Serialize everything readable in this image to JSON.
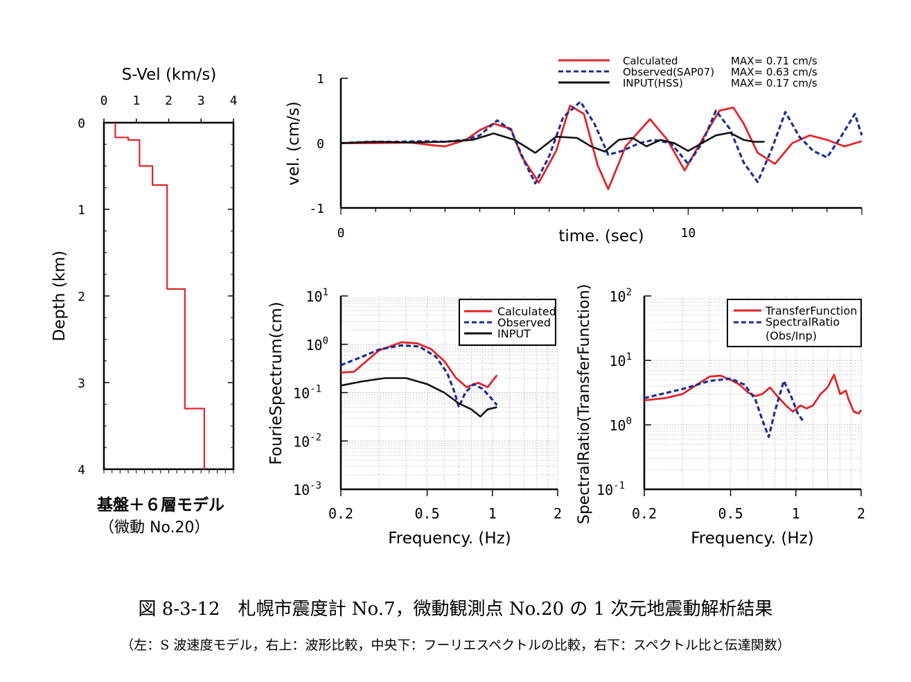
{
  "caption": {
    "main": "図 8-3-12　札幌市震度計 No.7，微動観測点 No.20 の 1 次元地震動解析結果",
    "sub": "（左：S 波速度モデル，右上：波形比較，中央下：フーリエスペクトルの比較，右下：スペクトル比と伝達関数）"
  },
  "colors": {
    "calculated": "#e0242a",
    "observed": "#1a2f8f",
    "input": "#111111"
  },
  "chart_data": [
    {
      "type": "line",
      "id": "velocity-model",
      "title": "S-Vel (km/s)",
      "xlabel": "S-Vel (km/s)",
      "ylabel": "Depth (km)",
      "xlim": [
        0,
        4
      ],
      "ylim": [
        0,
        4
      ],
      "x_ticks": [
        "0",
        "1",
        "2",
        "3",
        "4"
      ],
      "y_ticks": [
        "0",
        "1",
        "2",
        "3",
        "4"
      ],
      "y_inverted": true,
      "step_profile": {
        "depths": [
          0,
          0.17,
          0.2,
          0.5,
          0.72,
          1.92,
          3.3,
          4.0
        ],
        "velocities": [
          0.35,
          0.75,
          1.1,
          1.5,
          1.95,
          2.5,
          3.1
        ]
      },
      "annotation": [
        "基盤＋６層モデル",
        "（微動 No.20）"
      ]
    },
    {
      "type": "line",
      "id": "waveform",
      "xlabel": "time. (sec)",
      "ylabel": "vel. (cm/s)",
      "xlim": [
        0,
        15
      ],
      "ylim": [
        -1,
        1
      ],
      "x_ticks": [
        "0",
        "10"
      ],
      "y_ticks": [
        "-1",
        "0",
        "1"
      ],
      "legend": [
        {
          "name": "Calculated",
          "max": "MAX= 0.71 cm/s"
        },
        {
          "name": "Observed(SAP07)",
          "max": "MAX= 0.63 cm/s"
        },
        {
          "name": "INPUT(HSS)",
          "max": "MAX= 0.17 cm/s"
        }
      ],
      "series": [
        {
          "name": "Calculated",
          "x": [
            0,
            1,
            2,
            2.6,
            3,
            3.6,
            4,
            4.4,
            4.9,
            5.2,
            5.7,
            6.2,
            6.6,
            7.0,
            7.4,
            7.7,
            8.2,
            8.9,
            9.4,
            9.9,
            10.4,
            10.9,
            11.3,
            11.6,
            12.0,
            12.5,
            13.0,
            13.5,
            14.0,
            14.5,
            15.0
          ],
          "y": [
            0,
            0,
            0.01,
            -0.03,
            -0.05,
            0.05,
            0.2,
            0.3,
            0.22,
            -0.2,
            -0.61,
            -0.12,
            0.58,
            0.45,
            -0.35,
            -0.71,
            -0.05,
            0.37,
            0.05,
            -0.42,
            0.05,
            0.5,
            0.55,
            0.3,
            -0.15,
            -0.32,
            0.0,
            0.12,
            0.05,
            -0.05,
            0.03
          ]
        },
        {
          "name": "Observed(SAP07)",
          "x": [
            0,
            0.8,
            1.6,
            2.4,
            3.0,
            3.6,
            4.0,
            4.5,
            4.9,
            5.3,
            5.6,
            6.0,
            6.4,
            6.9,
            7.3,
            7.7,
            8.1,
            8.6,
            9.0,
            9.5,
            10.0,
            10.4,
            10.8,
            11.2,
            11.6,
            12.0,
            12.4,
            12.8,
            13.2,
            13.6,
            14.0,
            14.4,
            14.8,
            15.0
          ],
          "y": [
            0,
            0.02,
            0.02,
            0.03,
            0.02,
            0.05,
            0.12,
            0.35,
            0.2,
            -0.3,
            -0.62,
            -0.2,
            0.4,
            0.64,
            0.3,
            -0.18,
            -0.12,
            0.0,
            0.05,
            0.0,
            -0.32,
            0.0,
            0.5,
            0.22,
            -0.3,
            -0.6,
            -0.1,
            0.48,
            0.1,
            -0.12,
            -0.22,
            0.1,
            0.45,
            0.12
          ]
        },
        {
          "name": "INPUT(HSS)",
          "x": [
            0,
            1,
            2,
            3,
            3.8,
            4.4,
            5.0,
            5.6,
            6.2,
            6.8,
            7.2,
            7.6,
            8.0,
            8.4,
            8.8,
            9.2,
            9.6,
            10.0,
            10.4,
            10.8,
            11.2,
            11.6,
            11.9,
            12.2
          ],
          "y": [
            0,
            0.02,
            0.01,
            0.02,
            0.05,
            0.15,
            0.05,
            -0.15,
            0.1,
            0.08,
            -0.05,
            -0.13,
            0.05,
            0.08,
            -0.05,
            0.05,
            0.0,
            -0.12,
            0.0,
            0.12,
            0.16,
            0.05,
            0.02,
            0.02
          ]
        }
      ]
    },
    {
      "type": "line",
      "id": "fourier-spectrum",
      "xlabel": "Frequency. (Hz)",
      "ylabel": "FourieSpectrum(cm)",
      "x_scale": "log",
      "y_scale": "log",
      "xlim": [
        0.2,
        2
      ],
      "ylim": [
        0.001,
        10
      ],
      "x_ticks": [
        "0.2",
        "0.5",
        "1",
        "2"
      ],
      "y_tick_exponents": [
        "1",
        "0",
        "-1",
        "-2",
        "-3"
      ],
      "legend": [
        "Calculated",
        "Observed",
        "INPUT"
      ],
      "series": [
        {
          "name": "Calculated",
          "x": [
            0.2,
            0.23,
            0.3,
            0.38,
            0.45,
            0.52,
            0.6,
            0.68,
            0.76,
            0.86,
            0.95,
            1.05
          ],
          "y": [
            0.26,
            0.27,
            0.75,
            1.1,
            1.05,
            0.8,
            0.45,
            0.2,
            0.13,
            0.16,
            0.13,
            0.23
          ]
        },
        {
          "name": "Observed",
          "x": [
            0.2,
            0.25,
            0.3,
            0.38,
            0.46,
            0.55,
            0.62,
            0.67,
            0.7,
            0.75,
            0.82,
            0.9,
            0.98,
            1.05
          ],
          "y": [
            0.37,
            0.55,
            0.78,
            0.95,
            0.9,
            0.55,
            0.25,
            0.1,
            0.05,
            0.1,
            0.15,
            0.12,
            0.08,
            0.055
          ]
        },
        {
          "name": "INPUT",
          "x": [
            0.2,
            0.25,
            0.32,
            0.4,
            0.5,
            0.6,
            0.7,
            0.8,
            0.88,
            0.95,
            1.05
          ],
          "y": [
            0.14,
            0.17,
            0.2,
            0.2,
            0.15,
            0.1,
            0.06,
            0.045,
            0.032,
            0.045,
            0.05
          ]
        }
      ]
    },
    {
      "type": "line",
      "id": "spectral-ratio",
      "xlabel": "Frequency. (Hz)",
      "ylabel": "SpectralRatio(TransferFunction)",
      "x_scale": "log",
      "y_scale": "log",
      "xlim": [
        0.2,
        2
      ],
      "ylim": [
        0.1,
        100
      ],
      "x_ticks": [
        "0.2",
        "0.5",
        "1",
        "2"
      ],
      "y_tick_exponents": [
        "2",
        "1",
        "0",
        "-1"
      ],
      "legend": [
        "TransferFunction",
        "SpectralRatio",
        "(Obs/Inp)"
      ],
      "series": [
        {
          "name": "TransferFunction",
          "x": [
            0.2,
            0.25,
            0.3,
            0.35,
            0.4,
            0.45,
            0.5,
            0.55,
            0.6,
            0.65,
            0.7,
            0.76,
            0.82,
            0.9,
            0.97,
            1.05,
            1.12,
            1.2,
            1.3,
            1.4,
            1.5,
            1.6,
            1.7,
            1.75,
            1.85,
            1.95,
            2.0
          ],
          "y": [
            2.4,
            2.6,
            3.0,
            4.2,
            5.6,
            5.8,
            5.0,
            4.2,
            3.2,
            2.8,
            3.0,
            3.8,
            2.8,
            2.0,
            1.6,
            2.0,
            1.8,
            2.0,
            3.0,
            3.8,
            6.0,
            3.0,
            3.4,
            2.5,
            1.6,
            1.5,
            1.7
          ]
        },
        {
          "name": "SpectralRatio",
          "x": [
            0.2,
            0.3,
            0.4,
            0.5,
            0.58,
            0.65,
            0.7,
            0.75,
            0.8,
            0.88,
            0.95,
            1.02,
            1.08
          ],
          "y": [
            2.6,
            3.6,
            4.8,
            5.2,
            4.2,
            2.5,
            1.2,
            0.65,
            1.6,
            4.8,
            2.8,
            1.5,
            1.15
          ]
        }
      ]
    }
  ]
}
